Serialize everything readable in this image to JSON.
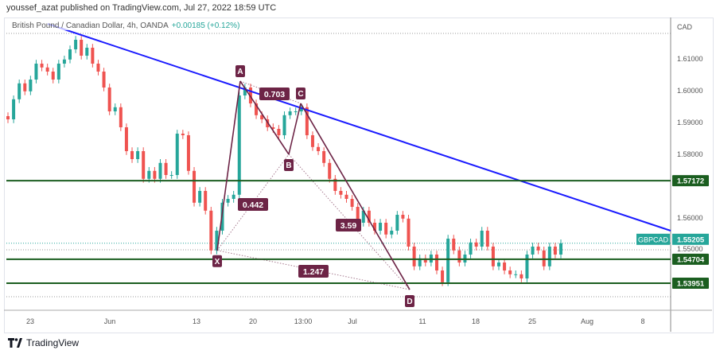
{
  "header": {
    "published": "youssef_azat published on TradingView.com, Jul 27, 2022 18:59 UTC"
  },
  "legend": {
    "symbol": "British Pound / Canadian Dollar, 4h, OANDA",
    "change": "+0.00185 (+0.12%)"
  },
  "footer": {
    "brand": "TradingView"
  },
  "colors": {
    "up": "#26a69a",
    "down": "#ef5350",
    "trend": "#1a1aff",
    "level": "#1b5e20",
    "pattern": "#6d2446"
  },
  "chart_data": {
    "type": "candlestick",
    "currency": "CAD",
    "y_ticks": [
      "1.61000",
      "1.60000",
      "1.59000",
      "1.58000",
      "1.56000",
      "1.55000"
    ],
    "y_tick_values": [
      1.61,
      1.6,
      1.59,
      1.58,
      1.56,
      1.55
    ],
    "x_ticks": [
      "23",
      "Jun",
      "13",
      "20",
      "13:00",
      "Jul",
      "11",
      "18",
      "25",
      "Aug",
      "8"
    ],
    "closes": [
      1.591,
      1.5973,
      1.6023,
      1.5998,
      1.6035,
      1.6085,
      1.6073,
      1.606,
      1.6035,
      1.6085,
      1.6098,
      1.613,
      1.616,
      1.611,
      1.6135,
      1.6085,
      1.606,
      1.601,
      1.5935,
      1.5948,
      1.5885,
      1.581,
      1.5785,
      1.581,
      1.5723,
      1.5748,
      1.5723,
      1.5773,
      1.5735,
      1.5735,
      1.5865,
      1.586,
      1.5748,
      1.5648,
      1.5685,
      1.5623,
      1.5498,
      1.556,
      1.5648,
      1.566,
      1.5673,
      1.5985,
      1.601,
      1.596,
      1.5923,
      1.591,
      1.5885,
      1.588,
      1.586,
      1.5923,
      1.5935,
      1.5935,
      1.5948,
      1.586,
      1.5823,
      1.581,
      1.5773,
      1.5723,
      1.5685,
      1.5673,
      1.566,
      1.5635,
      1.5585,
      1.5623,
      1.5585,
      1.556,
      1.5585,
      1.5548,
      1.556,
      1.561,
      1.5598,
      1.551,
      1.5448,
      1.5473,
      1.546,
      1.5485,
      1.5435,
      1.5398,
      1.5535,
      1.5498,
      1.546,
      1.5485,
      1.5523,
      1.551,
      1.556,
      1.551,
      1.5448,
      1.546,
      1.5435,
      1.5423,
      1.5423,
      1.541,
      1.5485,
      1.551,
      1.5498,
      1.5448,
      1.551,
      1.5485,
      1.55205
    ],
    "levels": [
      {
        "label": "1.57172",
        "value": 1.57172
      },
      {
        "label": "1.54704",
        "value": 1.54704
      },
      {
        "label": "1.53951",
        "value": 1.53951
      }
    ],
    "current": {
      "symbol": "GBPCAD",
      "label": "1.55205",
      "value": 1.55205
    },
    "pattern": {
      "points": [
        {
          "label": "X",
          "price": 1.5498
        },
        {
          "label": "A",
          "price": 1.603
        },
        {
          "label": "B",
          "price": 1.58
        },
        {
          "label": "C",
          "price": 1.596
        },
        {
          "label": "D",
          "price": 1.5375
        }
      ],
      "ratios": [
        "0.703",
        "0.442",
        "3.59",
        "1.247"
      ]
    }
  }
}
